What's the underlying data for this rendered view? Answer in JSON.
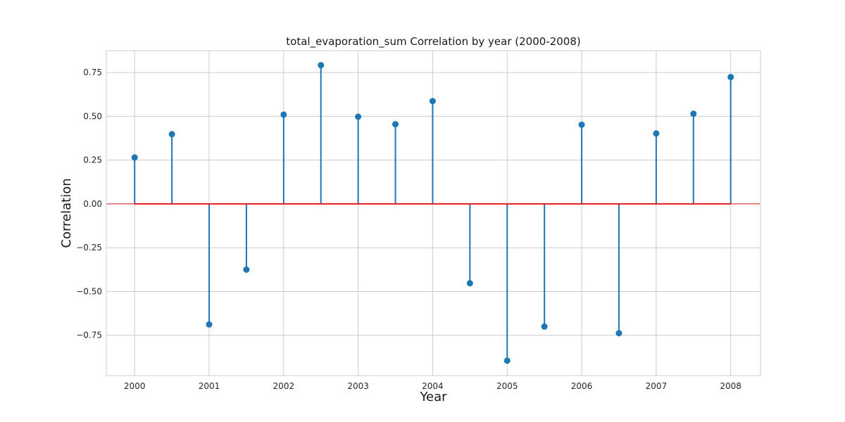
{
  "chart_data": {
    "type": "stem",
    "title": "total_evaporation_sum Correlation by year (2000-2008)",
    "xlabel": "Year",
    "ylabel": "Correlation",
    "xlim": [
      1999.62,
      2008.4
    ],
    "ylim": [
      -0.98,
      0.875
    ],
    "xticks": [
      2000,
      2001,
      2002,
      2003,
      2004,
      2005,
      2006,
      2007,
      2008
    ],
    "xtick_labels": [
      "2000",
      "2001",
      "2002",
      "2003",
      "2004",
      "2005",
      "2006",
      "2007",
      "2008"
    ],
    "yticks": [
      -0.75,
      -0.5,
      -0.25,
      0.0,
      0.25,
      0.5,
      0.75
    ],
    "ytick_labels": [
      "−0.75",
      "−0.50",
      "−0.25",
      "0.00",
      "0.25",
      "0.50",
      "0.75"
    ],
    "grid": true,
    "baseline": 0.0,
    "x": [
      2000,
      2000.5,
      2001,
      2001.5,
      2002,
      2002.5,
      2003,
      2003.5,
      2004,
      2004.5,
      2005,
      2005.5,
      2006,
      2006.5,
      2007,
      2007.5,
      2008
    ],
    "values": [
      0.265,
      0.398,
      -0.688,
      -0.375,
      0.51,
      0.792,
      0.498,
      0.455,
      0.587,
      -0.453,
      -0.895,
      -0.7,
      0.452,
      -0.738,
      0.402,
      0.515,
      0.724
    ],
    "colors": {
      "stem": "#1f77b4",
      "marker": "#1f77b4",
      "baseline": "#e41a1c",
      "grid": "#cccccc",
      "spine": "#cccccc"
    }
  }
}
